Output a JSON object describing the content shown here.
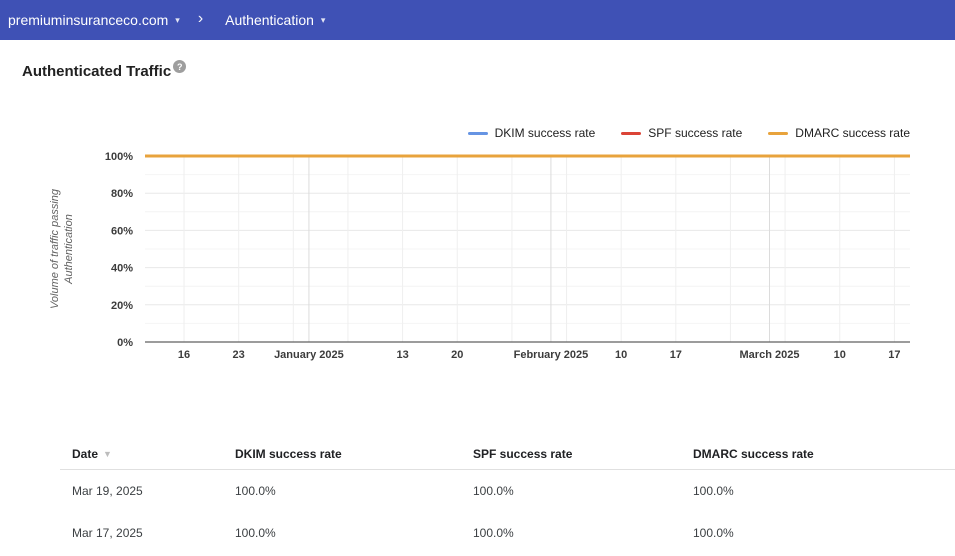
{
  "header": {
    "domain": "premiuminsuranceco.com",
    "section": "Authentication"
  },
  "icons": {
    "caret_down": "▾",
    "breadcrumb_chevron": "›",
    "help": "?",
    "sort_desc": "▼"
  },
  "colors": {
    "header_bg": "#3f51b5",
    "dkim_line": "#6694e3",
    "spf_line": "#db4437",
    "dmarc_line": "#e8a33c",
    "grid_minor": "#f4f4f4",
    "grid_major": "#e8e8e8",
    "grid_week": "#efefef",
    "grid_month": "#dcdcdc",
    "axis": "#616161",
    "tick_label": "#3c3c3c"
  },
  "page": {
    "title": "Authenticated Traffic"
  },
  "chart_data": {
    "type": "line",
    "title": "Authenticated Traffic",
    "ylabel": "Volume of traffic passing Authentication",
    "ylabel_lines": [
      "Volume of traffic passing",
      "Authentication"
    ],
    "ylim": [
      0,
      100
    ],
    "y_ticks": [
      {
        "value": 0,
        "label": "0%"
      },
      {
        "value": 20,
        "label": "20%"
      },
      {
        "value": 40,
        "label": "40%"
      },
      {
        "value": 60,
        "label": "60%"
      },
      {
        "value": 80,
        "label": "80%"
      },
      {
        "value": 100,
        "label": "100%"
      }
    ],
    "y_minor_step": 10,
    "grid": true,
    "legend_position": "top-right",
    "x_domain_days": 98,
    "x_week_ticks": [
      {
        "day": 5,
        "label": "16"
      },
      {
        "day": 12,
        "label": "23"
      },
      {
        "day": 19,
        "label": ""
      },
      {
        "day": 26,
        "label": ""
      },
      {
        "day": 33,
        "label": "13"
      },
      {
        "day": 40,
        "label": "20"
      },
      {
        "day": 47,
        "label": ""
      },
      {
        "day": 54,
        "label": ""
      },
      {
        "day": 61,
        "label": "10"
      },
      {
        "day": 68,
        "label": "17"
      },
      {
        "day": 75,
        "label": ""
      },
      {
        "day": 82,
        "label": ""
      },
      {
        "day": 89,
        "label": "10"
      },
      {
        "day": 96,
        "label": "17"
      }
    ],
    "x_month_ticks": [
      {
        "day": 21,
        "label": "January 2025"
      },
      {
        "day": 52,
        "label": "February 2025"
      },
      {
        "day": 80,
        "label": "March 2025"
      }
    ],
    "series": [
      {
        "name": "DKIM success rate",
        "color": "#6694e3",
        "value_percent": 100
      },
      {
        "name": "SPF success rate",
        "color": "#db4437",
        "value_percent": 100
      },
      {
        "name": "DMARC success rate",
        "color": "#e8a33c",
        "value_percent": 100
      }
    ]
  },
  "table": {
    "columns": [
      "Date",
      "DKIM success rate",
      "SPF success rate",
      "DMARC success rate"
    ],
    "rows": [
      [
        "Mar 19, 2025",
        "100.0%",
        "100.0%",
        "100.0%"
      ],
      [
        "Mar 17, 2025",
        "100.0%",
        "100.0%",
        "100.0%"
      ]
    ]
  }
}
